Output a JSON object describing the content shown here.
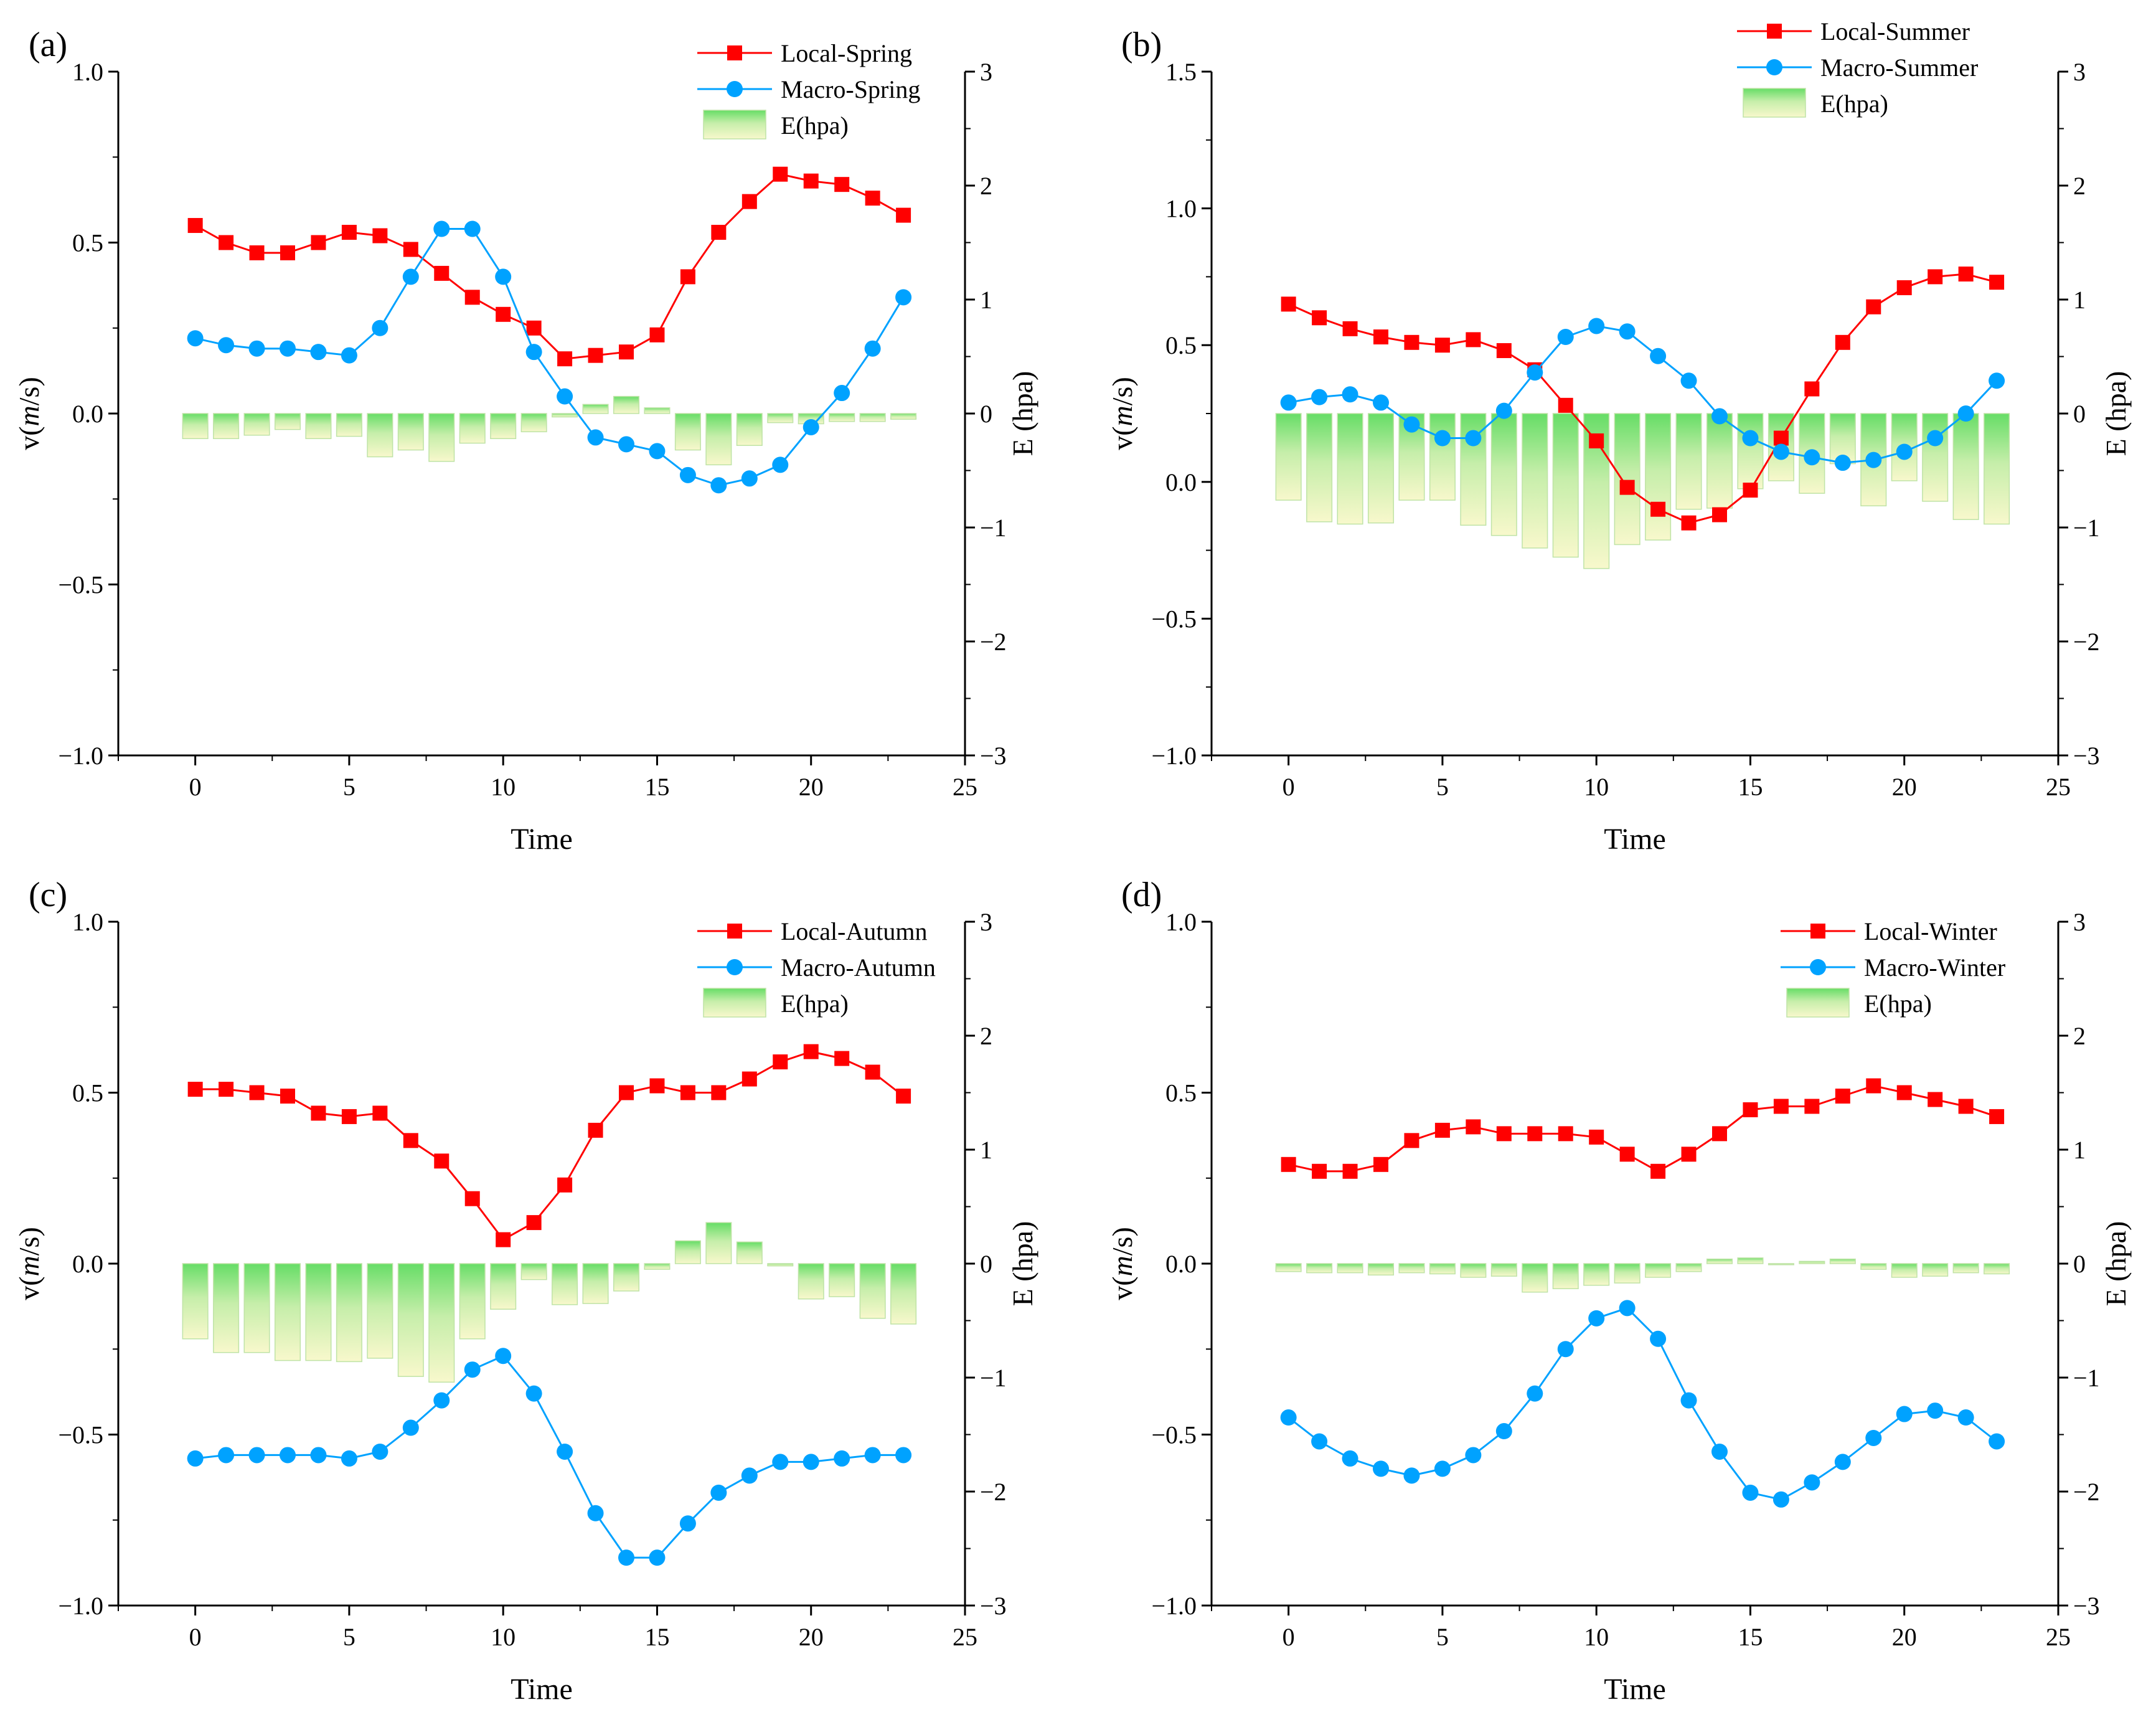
{
  "colors": {
    "local": "#ff0000",
    "macro": "#00a2ff",
    "bar_top": "#66dd66",
    "bar_bottom": "#f8f8cc",
    "bar_stroke": "#bfe3a6"
  },
  "chart_data": [
    {
      "panel_label": "(a)",
      "type": "line+bar",
      "x": [
        0,
        1,
        2,
        3,
        4,
        5,
        6,
        7,
        8,
        9,
        10,
        11,
        12,
        13,
        14,
        15,
        16,
        17,
        18,
        19,
        20,
        21,
        22,
        23
      ],
      "xlim": [
        -2.5,
        25
      ],
      "xticks": [
        "0",
        "5",
        "10",
        "15",
        "20",
        "25"
      ],
      "xlabel": "Time",
      "ylabel_pre": "v(",
      "ylabel_italic": "m",
      "ylabel_post": "/s)",
      "ylim": [
        -1.0,
        1.0
      ],
      "yticks": [
        "1.0",
        "0.5",
        "0.0",
        "−0.5",
        "−1.0"
      ],
      "y2label": "E (hpa)",
      "y2lim": [
        -3,
        3
      ],
      "y2ticks": [
        "3",
        "2",
        "1",
        "0",
        "−1",
        "−2",
        "−3"
      ],
      "series": [
        {
          "name": "Local-Spring",
          "kind": "line",
          "marker": "square",
          "values": [
            0.55,
            0.5,
            0.47,
            0.47,
            0.5,
            0.53,
            0.52,
            0.48,
            0.41,
            0.34,
            0.29,
            0.25,
            0.16,
            0.17,
            0.18,
            0.23,
            0.4,
            0.53,
            0.62,
            0.7,
            0.68,
            0.67,
            0.63,
            0.58
          ]
        },
        {
          "name": "Macro-Spring",
          "kind": "line",
          "marker": "circle",
          "values": [
            0.22,
            0.2,
            0.19,
            0.19,
            0.18,
            0.17,
            0.25,
            0.4,
            0.54,
            0.54,
            0.4,
            0.18,
            0.05,
            -0.07,
            -0.09,
            -0.11,
            -0.18,
            -0.21,
            -0.19,
            -0.15,
            -0.04,
            0.06,
            0.19,
            0.34
          ]
        },
        {
          "name": "E(hpa)",
          "kind": "bar",
          "values": [
            -0.22,
            -0.22,
            -0.19,
            -0.14,
            -0.22,
            -0.2,
            -0.38,
            -0.32,
            -0.42,
            -0.26,
            -0.22,
            -0.16,
            -0.03,
            0.08,
            0.15,
            0.05,
            -0.32,
            -0.45,
            -0.28,
            -0.08,
            -0.09,
            -0.07,
            -0.07,
            -0.05
          ]
        }
      ],
      "legend": [
        "Local-Spring",
        "Macro-Spring",
        "E(hpa)"
      ]
    },
    {
      "panel_label": "(b)",
      "type": "line+bar",
      "x": [
        0,
        1,
        2,
        3,
        4,
        5,
        6,
        7,
        8,
        9,
        10,
        11,
        12,
        13,
        14,
        15,
        16,
        17,
        18,
        19,
        20,
        21,
        22,
        23
      ],
      "xlim": [
        -2.5,
        25
      ],
      "xticks": [
        "0",
        "5",
        "10",
        "15",
        "20",
        "25"
      ],
      "xlabel": "Time",
      "ylabel_pre": "v(",
      "ylabel_italic": "m",
      "ylabel_post": "/s)",
      "ylim": [
        -1.0,
        1.5
      ],
      "yticks": [
        "1.5",
        "1.0",
        "0.5",
        "0.0",
        "−0.5",
        "−1.0"
      ],
      "y2label": "E (hpa)",
      "y2lim": [
        -3,
        3
      ],
      "y2ticks": [
        "3",
        "2",
        "1",
        "0",
        "−1",
        "−2",
        "−3"
      ],
      "series": [
        {
          "name": "Local-Summer",
          "kind": "line",
          "marker": "square",
          "values": [
            0.65,
            0.6,
            0.56,
            0.53,
            0.51,
            0.5,
            0.52,
            0.48,
            0.41,
            0.28,
            0.15,
            -0.02,
            -0.1,
            -0.15,
            -0.12,
            -0.03,
            0.16,
            0.34,
            0.51,
            0.64,
            0.71,
            0.75,
            0.76,
            0.73
          ]
        },
        {
          "name": "Macro-Summer",
          "kind": "line",
          "marker": "circle",
          "values": [
            0.29,
            0.31,
            0.32,
            0.29,
            0.21,
            0.16,
            0.16,
            0.26,
            0.4,
            0.53,
            0.57,
            0.55,
            0.46,
            0.37,
            0.24,
            0.16,
            0.11,
            0.09,
            0.07,
            0.08,
            0.11,
            0.16,
            0.25,
            0.37
          ]
        },
        {
          "name": "E(hpa)",
          "kind": "bar",
          "values": [
            -0.76,
            -0.95,
            -0.97,
            -0.96,
            -0.76,
            -0.76,
            -0.98,
            -1.07,
            -1.18,
            -1.26,
            -1.36,
            -1.15,
            -1.11,
            -0.84,
            -0.83,
            -0.66,
            -0.59,
            -0.7,
            -0.44,
            -0.81,
            -0.59,
            -0.77,
            -0.93,
            -0.97
          ]
        }
      ],
      "legend": [
        "Local-Summer",
        "Macro-Summer",
        "E(hpa)"
      ]
    },
    {
      "panel_label": "(c)",
      "type": "line+bar",
      "x": [
        0,
        1,
        2,
        3,
        4,
        5,
        6,
        7,
        8,
        9,
        10,
        11,
        12,
        13,
        14,
        15,
        16,
        17,
        18,
        19,
        20,
        21,
        22,
        23
      ],
      "xlim": [
        -2.5,
        25
      ],
      "xticks": [
        "0",
        "5",
        "10",
        "15",
        "20",
        "25"
      ],
      "xlabel": "Time",
      "ylabel_pre": "v(",
      "ylabel_italic": "m",
      "ylabel_post": "/s)",
      "ylim": [
        -1.0,
        1.0
      ],
      "yticks": [
        "1.0",
        "0.5",
        "0.0",
        "−0.5",
        "−1.0"
      ],
      "y2label": "E (hpa)",
      "y2lim": [
        -3,
        3
      ],
      "y2ticks": [
        "3",
        "2",
        "1",
        "0",
        "−1",
        "−2",
        "−3"
      ],
      "series": [
        {
          "name": "Local-Autumn",
          "kind": "line",
          "marker": "square",
          "values": [
            0.51,
            0.51,
            0.5,
            0.49,
            0.44,
            0.43,
            0.44,
            0.36,
            0.3,
            0.19,
            0.07,
            0.12,
            0.23,
            0.39,
            0.5,
            0.52,
            0.5,
            0.5,
            0.54,
            0.59,
            0.62,
            0.6,
            0.56,
            0.49
          ]
        },
        {
          "name": "Macro-Autumn",
          "kind": "line",
          "marker": "circle",
          "values": [
            -0.57,
            -0.56,
            -0.56,
            -0.56,
            -0.56,
            -0.57,
            -0.55,
            -0.48,
            -0.4,
            -0.31,
            -0.27,
            -0.38,
            -0.55,
            -0.73,
            -0.86,
            -0.86,
            -0.76,
            -0.67,
            -0.62,
            -0.58,
            -0.58,
            -0.57,
            -0.56,
            -0.56
          ]
        },
        {
          "name": "E(hpa)",
          "kind": "bar",
          "values": [
            -0.66,
            -0.78,
            -0.78,
            -0.85,
            -0.85,
            -0.86,
            -0.83,
            -0.99,
            -1.04,
            -0.66,
            -0.4,
            -0.14,
            -0.36,
            -0.35,
            -0.24,
            -0.05,
            0.2,
            0.36,
            0.19,
            -0.02,
            -0.31,
            -0.29,
            -0.48,
            -0.53
          ]
        }
      ],
      "legend": [
        "Local-Autumn",
        "Macro-Autumn",
        "E(hpa)"
      ]
    },
    {
      "panel_label": "(d)",
      "type": "line+bar",
      "x": [
        0,
        1,
        2,
        3,
        4,
        5,
        6,
        7,
        8,
        9,
        10,
        11,
        12,
        13,
        14,
        15,
        16,
        17,
        18,
        19,
        20,
        21,
        22,
        23
      ],
      "xlim": [
        -2.5,
        25
      ],
      "xticks": [
        "0",
        "5",
        "10",
        "15",
        "20",
        "25"
      ],
      "xlabel": "Time",
      "ylabel_pre": "v(",
      "ylabel_italic": "m",
      "ylabel_post": "/s)",
      "ylim": [
        -1.0,
        1.0
      ],
      "yticks": [
        "1.0",
        "0.5",
        "0.0",
        "−0.5",
        "−1.0"
      ],
      "y2label": "E (hpa)",
      "y2lim": [
        -3,
        3
      ],
      "y2ticks": [
        "3",
        "2",
        "1",
        "0",
        "−1",
        "−2",
        "−3"
      ],
      "series": [
        {
          "name": "Local-Winter",
          "kind": "line",
          "marker": "square",
          "values": [
            0.29,
            0.27,
            0.27,
            0.29,
            0.36,
            0.39,
            0.4,
            0.38,
            0.38,
            0.38,
            0.37,
            0.32,
            0.27,
            0.32,
            0.38,
            0.45,
            0.46,
            0.46,
            0.49,
            0.52,
            0.5,
            0.48,
            0.46,
            0.43
          ]
        },
        {
          "name": "Macro-Winter",
          "kind": "line",
          "marker": "circle",
          "values": [
            -0.45,
            -0.52,
            -0.57,
            -0.6,
            -0.62,
            -0.6,
            -0.56,
            -0.49,
            -0.38,
            -0.25,
            -0.16,
            -0.13,
            -0.22,
            -0.4,
            -0.55,
            -0.67,
            -0.69,
            -0.64,
            -0.58,
            -0.51,
            -0.44,
            -0.43,
            -0.45,
            -0.52
          ]
        },
        {
          "name": "E(hpa)",
          "kind": "bar",
          "values": [
            -0.07,
            -0.08,
            -0.08,
            -0.1,
            -0.08,
            -0.09,
            -0.12,
            -0.11,
            -0.25,
            -0.22,
            -0.19,
            -0.17,
            -0.12,
            -0.07,
            0.04,
            0.05,
            -0.01,
            0.02,
            0.04,
            -0.05,
            -0.12,
            -0.11,
            -0.08,
            -0.09
          ]
        }
      ],
      "legend": [
        "Local-Winter",
        "Macro-Winter",
        "E(hpa)"
      ]
    }
  ]
}
